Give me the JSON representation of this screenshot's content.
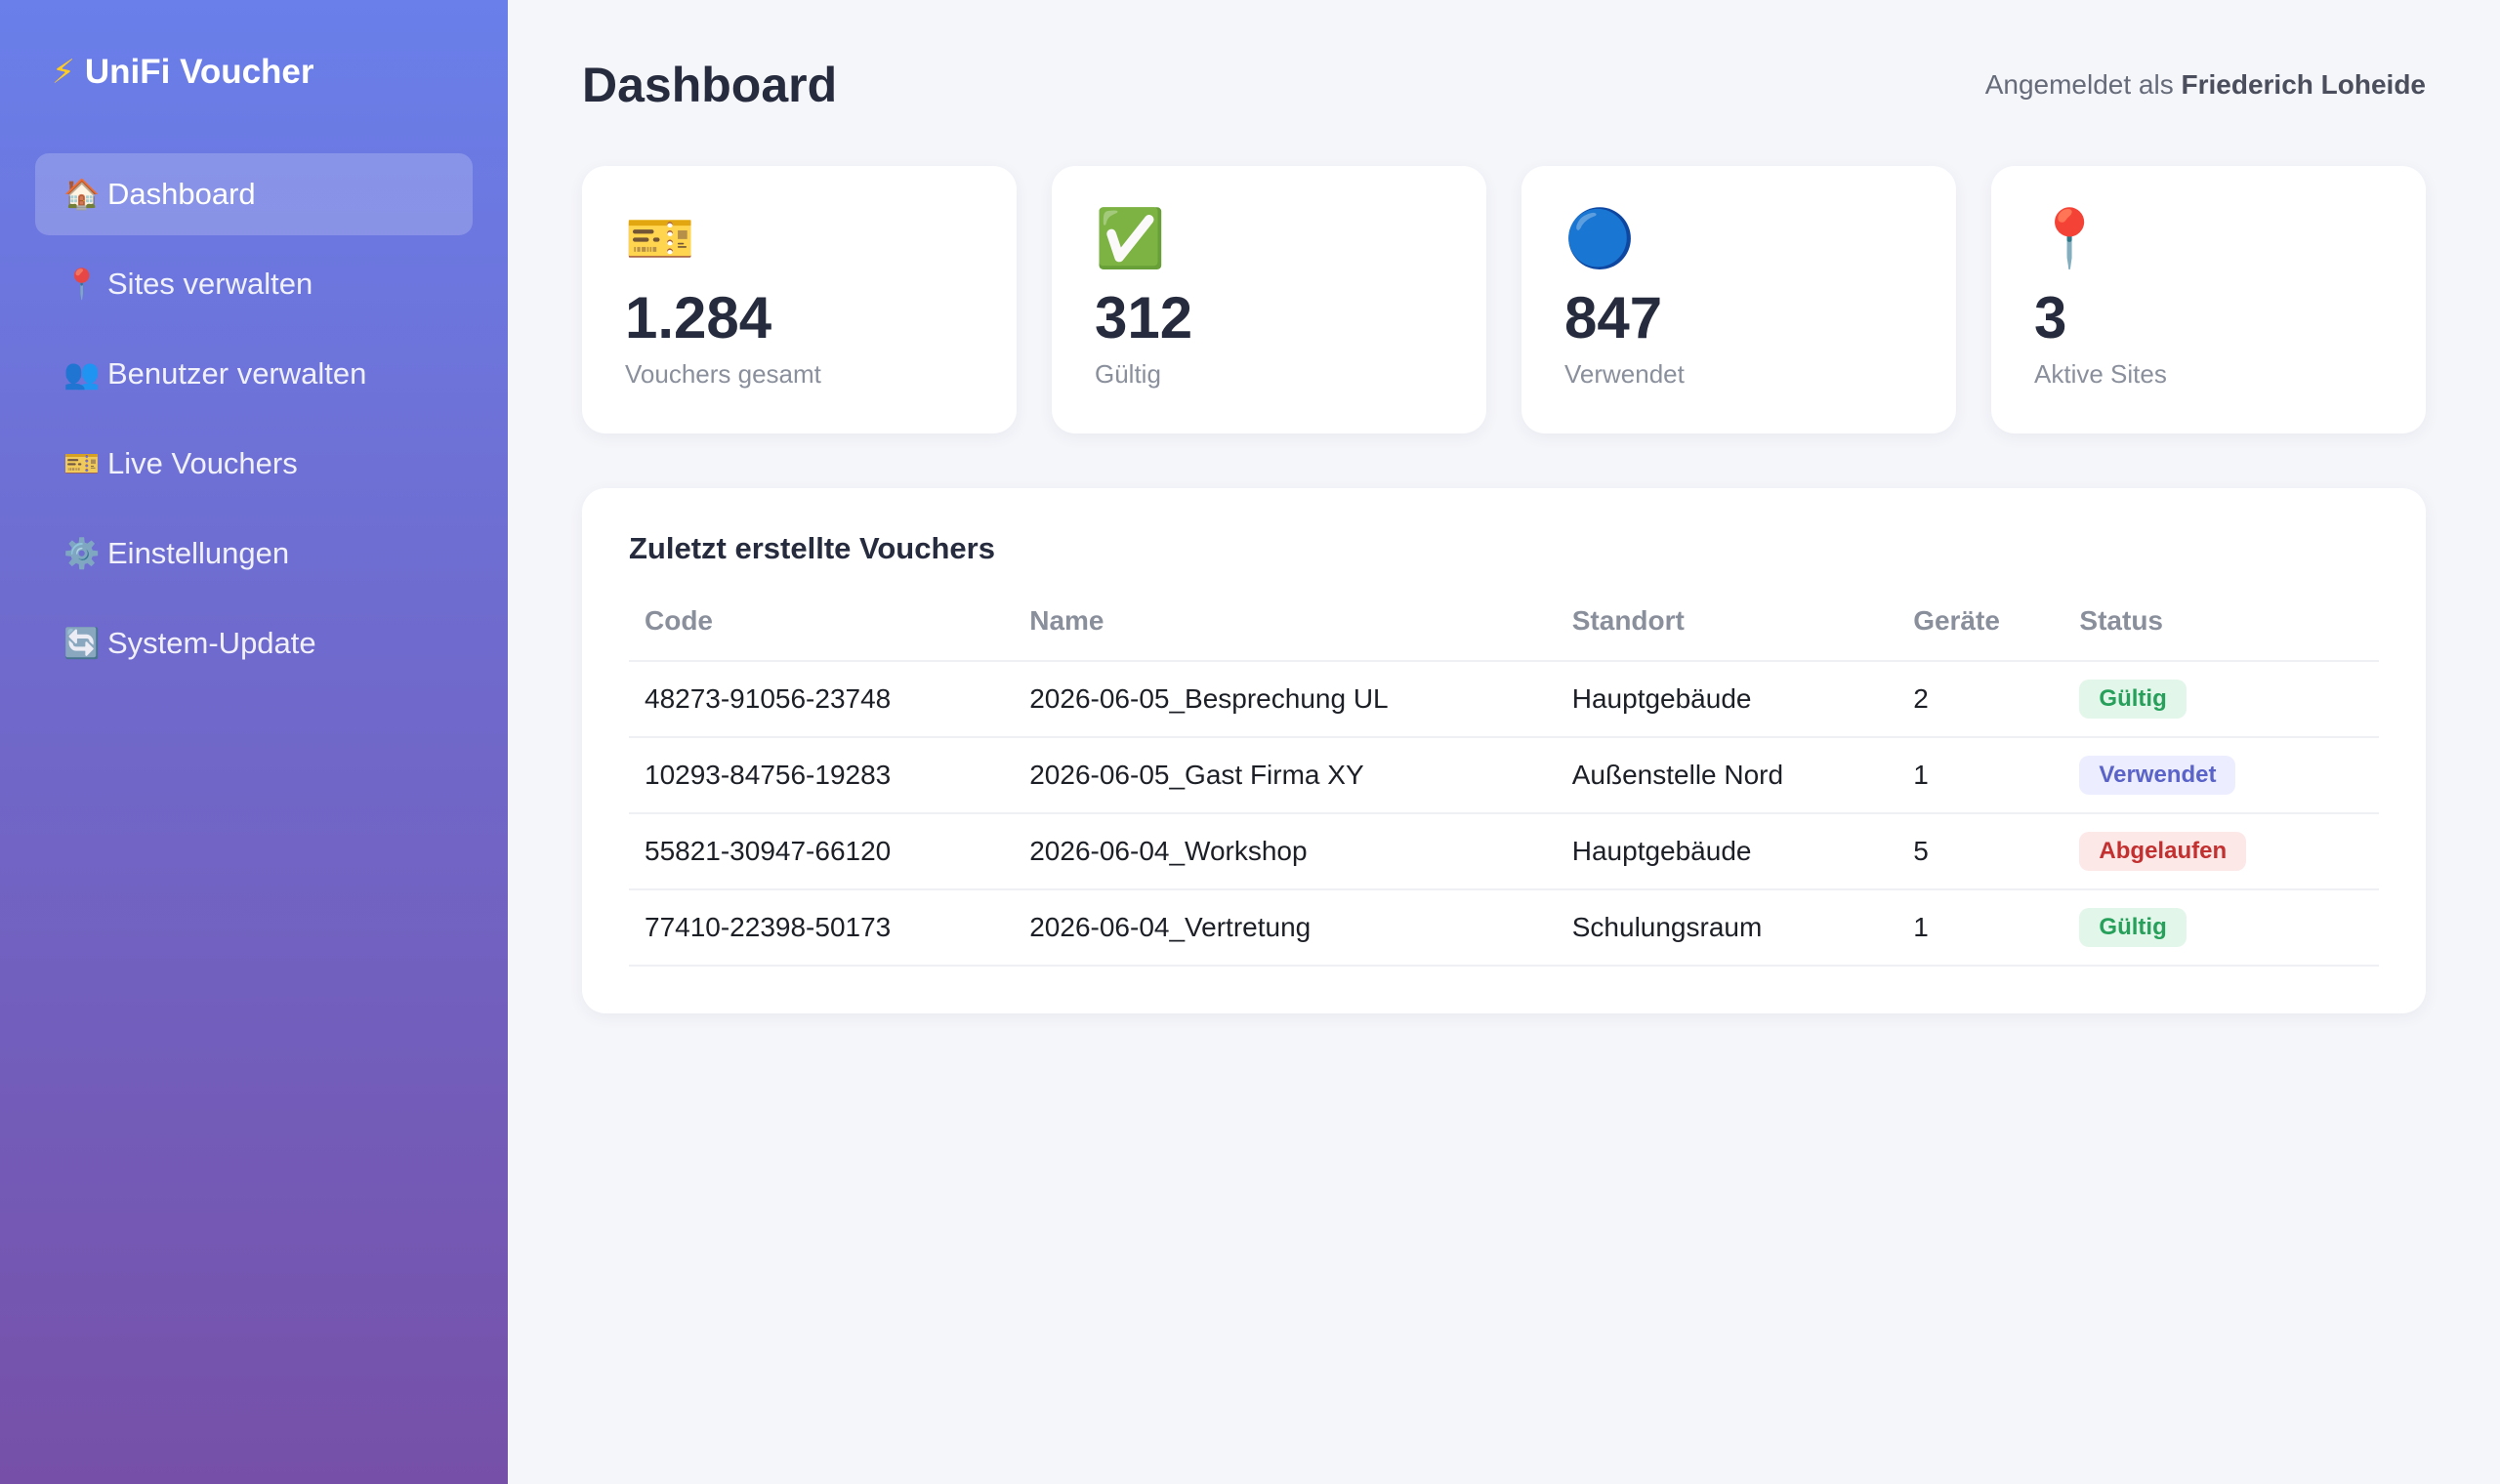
{
  "sidebar": {
    "brand": {
      "icon": "⚡",
      "title": "UniFi Voucher"
    },
    "items": [
      {
        "icon": "🏠",
        "label": "Dashboard",
        "active": true
      },
      {
        "icon": "📍",
        "label": "Sites verwalten"
      },
      {
        "icon": "👥",
        "label": "Benutzer verwalten"
      },
      {
        "icon": "🎫",
        "label": "Live Vouchers"
      },
      {
        "icon": "⚙️",
        "label": "Einstellungen"
      },
      {
        "icon": "🔄",
        "label": "System-Update"
      }
    ]
  },
  "header": {
    "title": "Dashboard",
    "user_prefix": "Angemeldet als",
    "user_name": "Friederich Loheide"
  },
  "stats": [
    {
      "icon": "🎫",
      "value": "1.284",
      "label": "Vouchers gesamt"
    },
    {
      "icon": "✅",
      "value": "312",
      "label": "Gültig"
    },
    {
      "icon": "🔵",
      "value": "847",
      "label": "Verwendet"
    },
    {
      "icon": "📍",
      "value": "3",
      "label": "Aktive Sites"
    }
  ],
  "recent": {
    "title": "Zuletzt erstellte Vouchers",
    "columns": [
      "Code",
      "Name",
      "Standort",
      "Geräte",
      "Status"
    ],
    "rows": [
      {
        "code": "48273-91056-23748",
        "name": "2026-06-05_Besprechung UL",
        "site": "Hauptgebäude",
        "devices": "2",
        "status": "Gültig"
      },
      {
        "code": "10293-84756-19283",
        "name": "2026-06-05_Gast Firma XY",
        "site": "Außenstelle Nord",
        "devices": "1",
        "status": "Verwendet"
      },
      {
        "code": "55821-30947-66120",
        "name": "2026-06-04_Workshop",
        "site": "Hauptgebäude",
        "devices": "5",
        "status": "Abgelaufen"
      },
      {
        "code": "77410-22398-50173",
        "name": "2026-06-04_Vertretung",
        "site": "Schulungsraum",
        "devices": "1",
        "status": "Gültig"
      }
    ]
  },
  "colors": {
    "gradient_top": "#6a7fea",
    "gradient_bottom": "#7650a8",
    "valid": "#26a05a",
    "used": "#5a63c7",
    "expired": "#c23030"
  }
}
